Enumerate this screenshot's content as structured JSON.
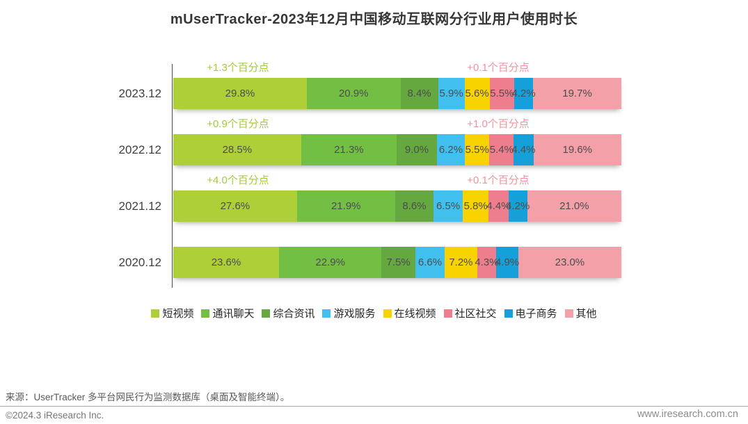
{
  "title": "mUserTracker-2023年12月中国移动互联网分行业用户使用时长",
  "chart_data": {
    "type": "bar",
    "orientation": "horizontal-stacked",
    "unit": "%",
    "title": "mUserTracker-2023年12月中国移动互联网分行业用户使用时长",
    "categories": [
      "2023.12",
      "2022.12",
      "2021.12",
      "2020.12"
    ],
    "series": [
      {
        "name": "短视频",
        "color": "#aecf38",
        "values": [
          29.8,
          28.5,
          27.6,
          23.6
        ]
      },
      {
        "name": "通讯聊天",
        "color": "#73bf44",
        "values": [
          20.9,
          21.3,
          21.9,
          22.9
        ]
      },
      {
        "name": "综合资讯",
        "color": "#64a83f",
        "values": [
          8.4,
          9.0,
          8.6,
          7.5
        ]
      },
      {
        "name": "游戏服务",
        "color": "#41c0f0",
        "values": [
          5.9,
          6.2,
          6.5,
          6.6
        ]
      },
      {
        "name": "在线视频",
        "color": "#f8d300",
        "values": [
          5.6,
          5.5,
          5.8,
          7.2
        ]
      },
      {
        "name": "社区社交",
        "color": "#ee7d8d",
        "values": [
          5.5,
          5.4,
          4.4,
          4.3
        ]
      },
      {
        "name": "电子商务",
        "color": "#16a0da",
        "values": [
          4.2,
          4.4,
          4.2,
          4.9
        ]
      },
      {
        "name": "其他",
        "color": "#f3a0a9",
        "values": [
          19.7,
          19.6,
          21.0,
          23.0
        ]
      }
    ],
    "annotations": [
      {
        "green": "+1.3个百分点",
        "pink": "+0.1个百分点"
      },
      {
        "green": "+0.9个百分点",
        "pink": "+1.0个百分点"
      },
      {
        "green": "+4.0个百分点",
        "pink": "+0.1个百分点"
      },
      {}
    ],
    "annotation_colors": {
      "green": "#a3cb37",
      "pink": "#f0929f"
    },
    "legend_position": "bottom",
    "xlim": [
      0,
      100
    ],
    "grid": false
  },
  "footer": {
    "source": "来源：UserTracker 多平台网民行为监测数据库（桌面及智能终端）。",
    "copyright": "©2024.3 iResearch Inc.",
    "website": "www.iresearch.com.cn"
  }
}
